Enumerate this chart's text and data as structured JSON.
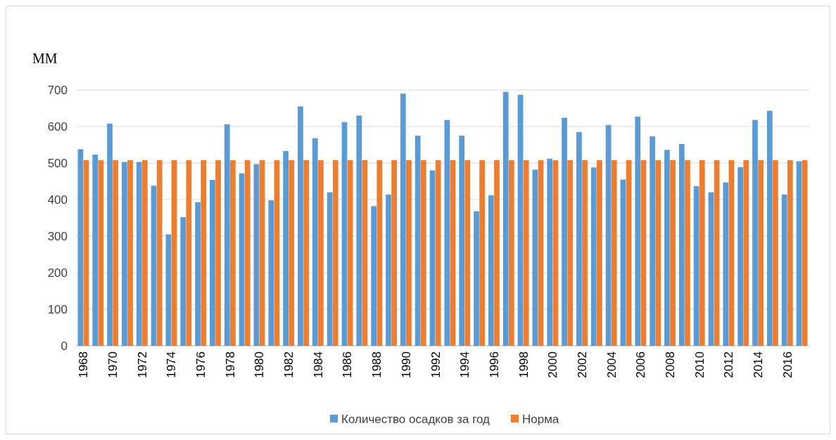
{
  "chart_data": {
    "type": "bar",
    "ylabel": "ММ",
    "categories": [
      "1968",
      null,
      "1970",
      null,
      "1972",
      null,
      "1974",
      null,
      "1976",
      null,
      "1978",
      null,
      "1980",
      null,
      "1982",
      null,
      "1984",
      null,
      "1986",
      null,
      "1988",
      null,
      "1990",
      null,
      "1992",
      null,
      "1994",
      null,
      "1996",
      null,
      "1998",
      null,
      "2000",
      null,
      "2002",
      null,
      "2004",
      null,
      "2006",
      null,
      "2008",
      null,
      "2010",
      null,
      "2012",
      null,
      "2014",
      null,
      "2016",
      null
    ],
    "series": [
      {
        "name": "Количество осадков за год",
        "color": "#5b9bd5",
        "values": [
          538,
          523,
          608,
          503,
          503,
          438,
          305,
          352,
          393,
          454,
          606,
          472,
          497,
          398,
          533,
          655,
          568,
          420,
          612,
          630,
          382,
          414,
          690,
          575,
          480,
          618,
          575,
          368,
          412,
          695,
          687,
          482,
          512,
          624,
          585,
          488,
          604,
          455,
          627,
          573,
          536,
          552,
          437,
          420,
          447,
          489,
          618,
          643,
          414,
          505
        ]
      },
      {
        "name": "Норма",
        "color": "#ed7d31",
        "values": [
          508,
          508,
          508,
          508,
          508,
          508,
          508,
          508,
          508,
          508,
          508,
          508,
          508,
          508,
          508,
          508,
          508,
          508,
          508,
          508,
          508,
          508,
          508,
          508,
          508,
          508,
          508,
          508,
          508,
          508,
          508,
          508,
          508,
          508,
          508,
          508,
          508,
          508,
          508,
          508,
          508,
          508,
          508,
          508,
          508,
          508,
          508,
          508,
          508,
          508
        ]
      }
    ],
    "ylim": [
      0,
      700
    ],
    "yticks": [
      0,
      100,
      200,
      300,
      400,
      500,
      600,
      700
    ],
    "grid": "y",
    "legend": "bottom"
  }
}
